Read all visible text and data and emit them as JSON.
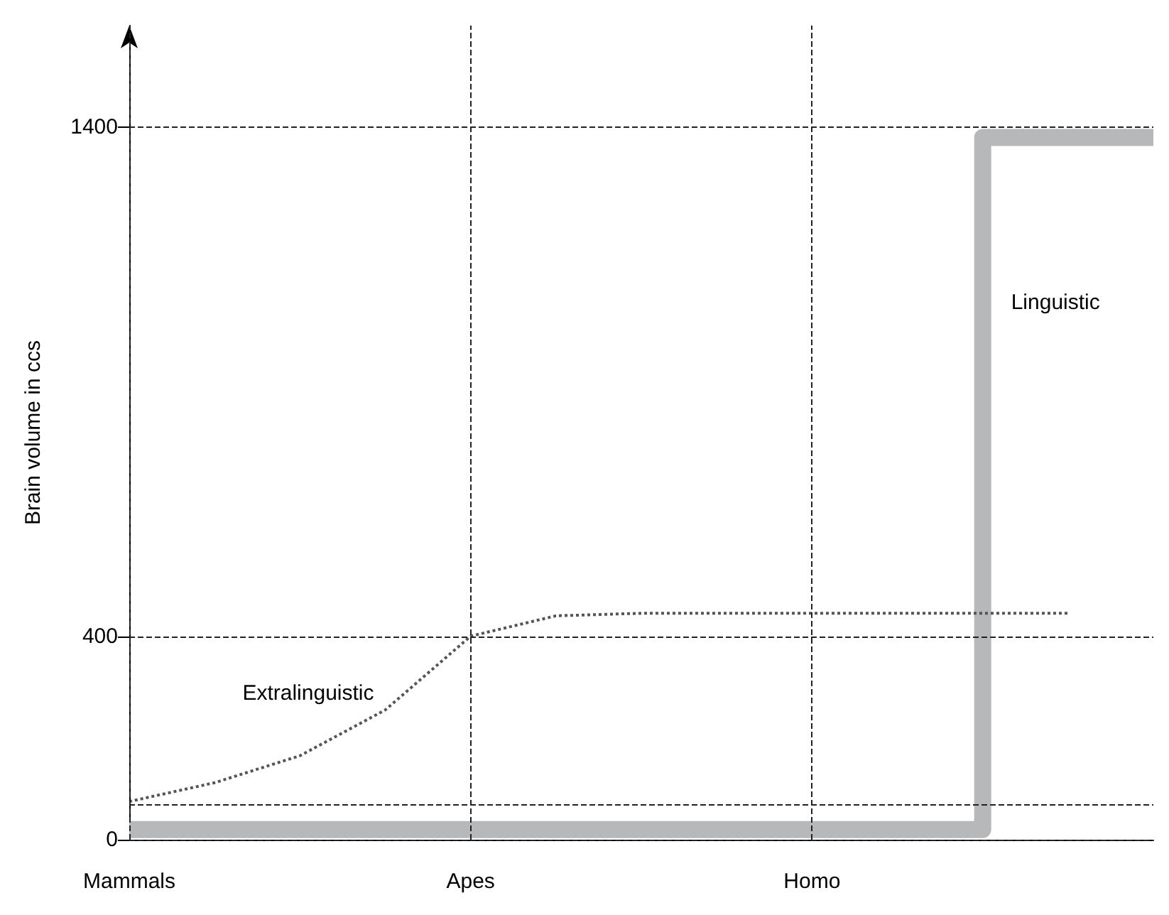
{
  "chart_data": {
    "type": "line",
    "ylabel": "Brain volume in ccs",
    "categories": [
      "Mammals",
      null,
      null,
      null,
      "Apes",
      null,
      null,
      null,
      "Homo",
      null,
      null,
      null,
      null
    ],
    "ylim": [
      0,
      1600
    ],
    "yticks": [
      0,
      400,
      1400
    ],
    "grid": true,
    "marker": "none",
    "ref_lines": [
      {
        "axis": "y",
        "value": 70
      }
    ],
    "series": [
      {
        "name": "Extralinguistic",
        "type": "line",
        "color": "#555555",
        "line_style": "dotted",
        "values": [
          75,
          112,
          165,
          255,
          400,
          440,
          445,
          445,
          445,
          445,
          445,
          445,
          null
        ]
      },
      {
        "name": "Linguistic",
        "type": "step",
        "color": "#b7b8ba",
        "line_style": "solid",
        "values": [
          20,
          20,
          20,
          20,
          20,
          20,
          20,
          20,
          20,
          20,
          1380,
          1380,
          1380
        ]
      }
    ]
  }
}
